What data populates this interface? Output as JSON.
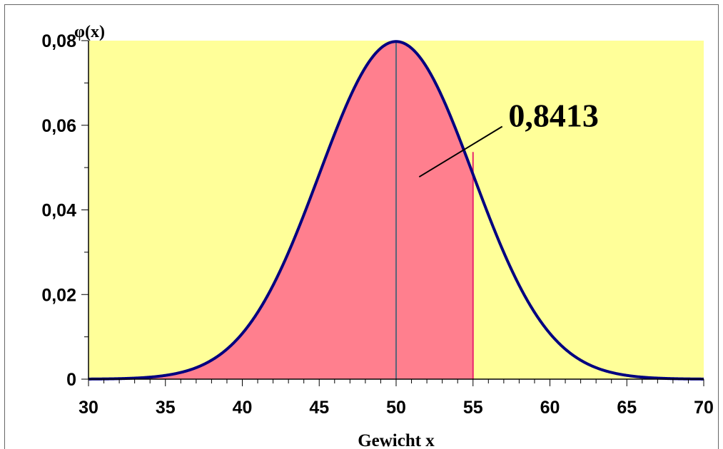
{
  "chart_data": {
    "type": "area",
    "title": "",
    "xlabel": "Gewicht x",
    "ylabel": "φ(x)",
    "xlim": [
      30,
      70
    ],
    "ylim": [
      0,
      0.08
    ],
    "x_ticks": [
      30,
      35,
      40,
      45,
      50,
      55,
      60,
      65,
      70
    ],
    "x_tick_labels": [
      "30",
      "35",
      "40",
      "45",
      "50",
      "55",
      "60",
      "65",
      "70"
    ],
    "x_minor_step": 1,
    "y_ticks": [
      0,
      0.02,
      0.04,
      0.06,
      0.08
    ],
    "y_tick_labels": [
      "0",
      "0,02",
      "0,04",
      "0,06",
      "0,08"
    ],
    "y_minor_step": 0.01,
    "grid": false,
    "legend": "none",
    "distribution": {
      "name": "normal",
      "mean": 50,
      "std_dev": 5
    },
    "shaded_region": {
      "from": 30,
      "to": 55,
      "probability_label": "0,8413"
    },
    "mean_line_x": 50,
    "boundary_line_x": 55,
    "colors": {
      "plot_background": "#ffff99",
      "shaded_fill": "#ff7f8e",
      "curve": "#000080",
      "mean_line": "#5a6478",
      "boundary_line": "#e8266d",
      "annotation_line": "#000000"
    }
  }
}
